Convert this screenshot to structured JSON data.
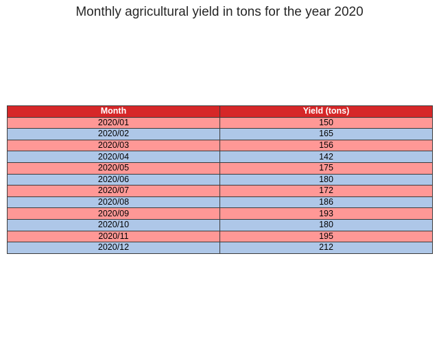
{
  "chart_data": {
    "type": "table",
    "title": "Monthly agricultural yield in tons for the year 2020",
    "columns": [
      "Month",
      "Yield (tons)"
    ],
    "rows": [
      [
        "2020/01",
        "150"
      ],
      [
        "2020/02",
        "165"
      ],
      [
        "2020/03",
        "156"
      ],
      [
        "2020/04",
        "142"
      ],
      [
        "2020/05",
        "175"
      ],
      [
        "2020/06",
        "180"
      ],
      [
        "2020/07",
        "172"
      ],
      [
        "2020/08",
        "186"
      ],
      [
        "2020/09",
        "193"
      ],
      [
        "2020/10",
        "180"
      ],
      [
        "2020/11",
        "195"
      ],
      [
        "2020/12",
        "212"
      ]
    ]
  },
  "colors": {
    "header": "#d62728",
    "row_odd": "#ff9896",
    "row_even": "#aec7e8",
    "border": "#3a3a3a"
  }
}
